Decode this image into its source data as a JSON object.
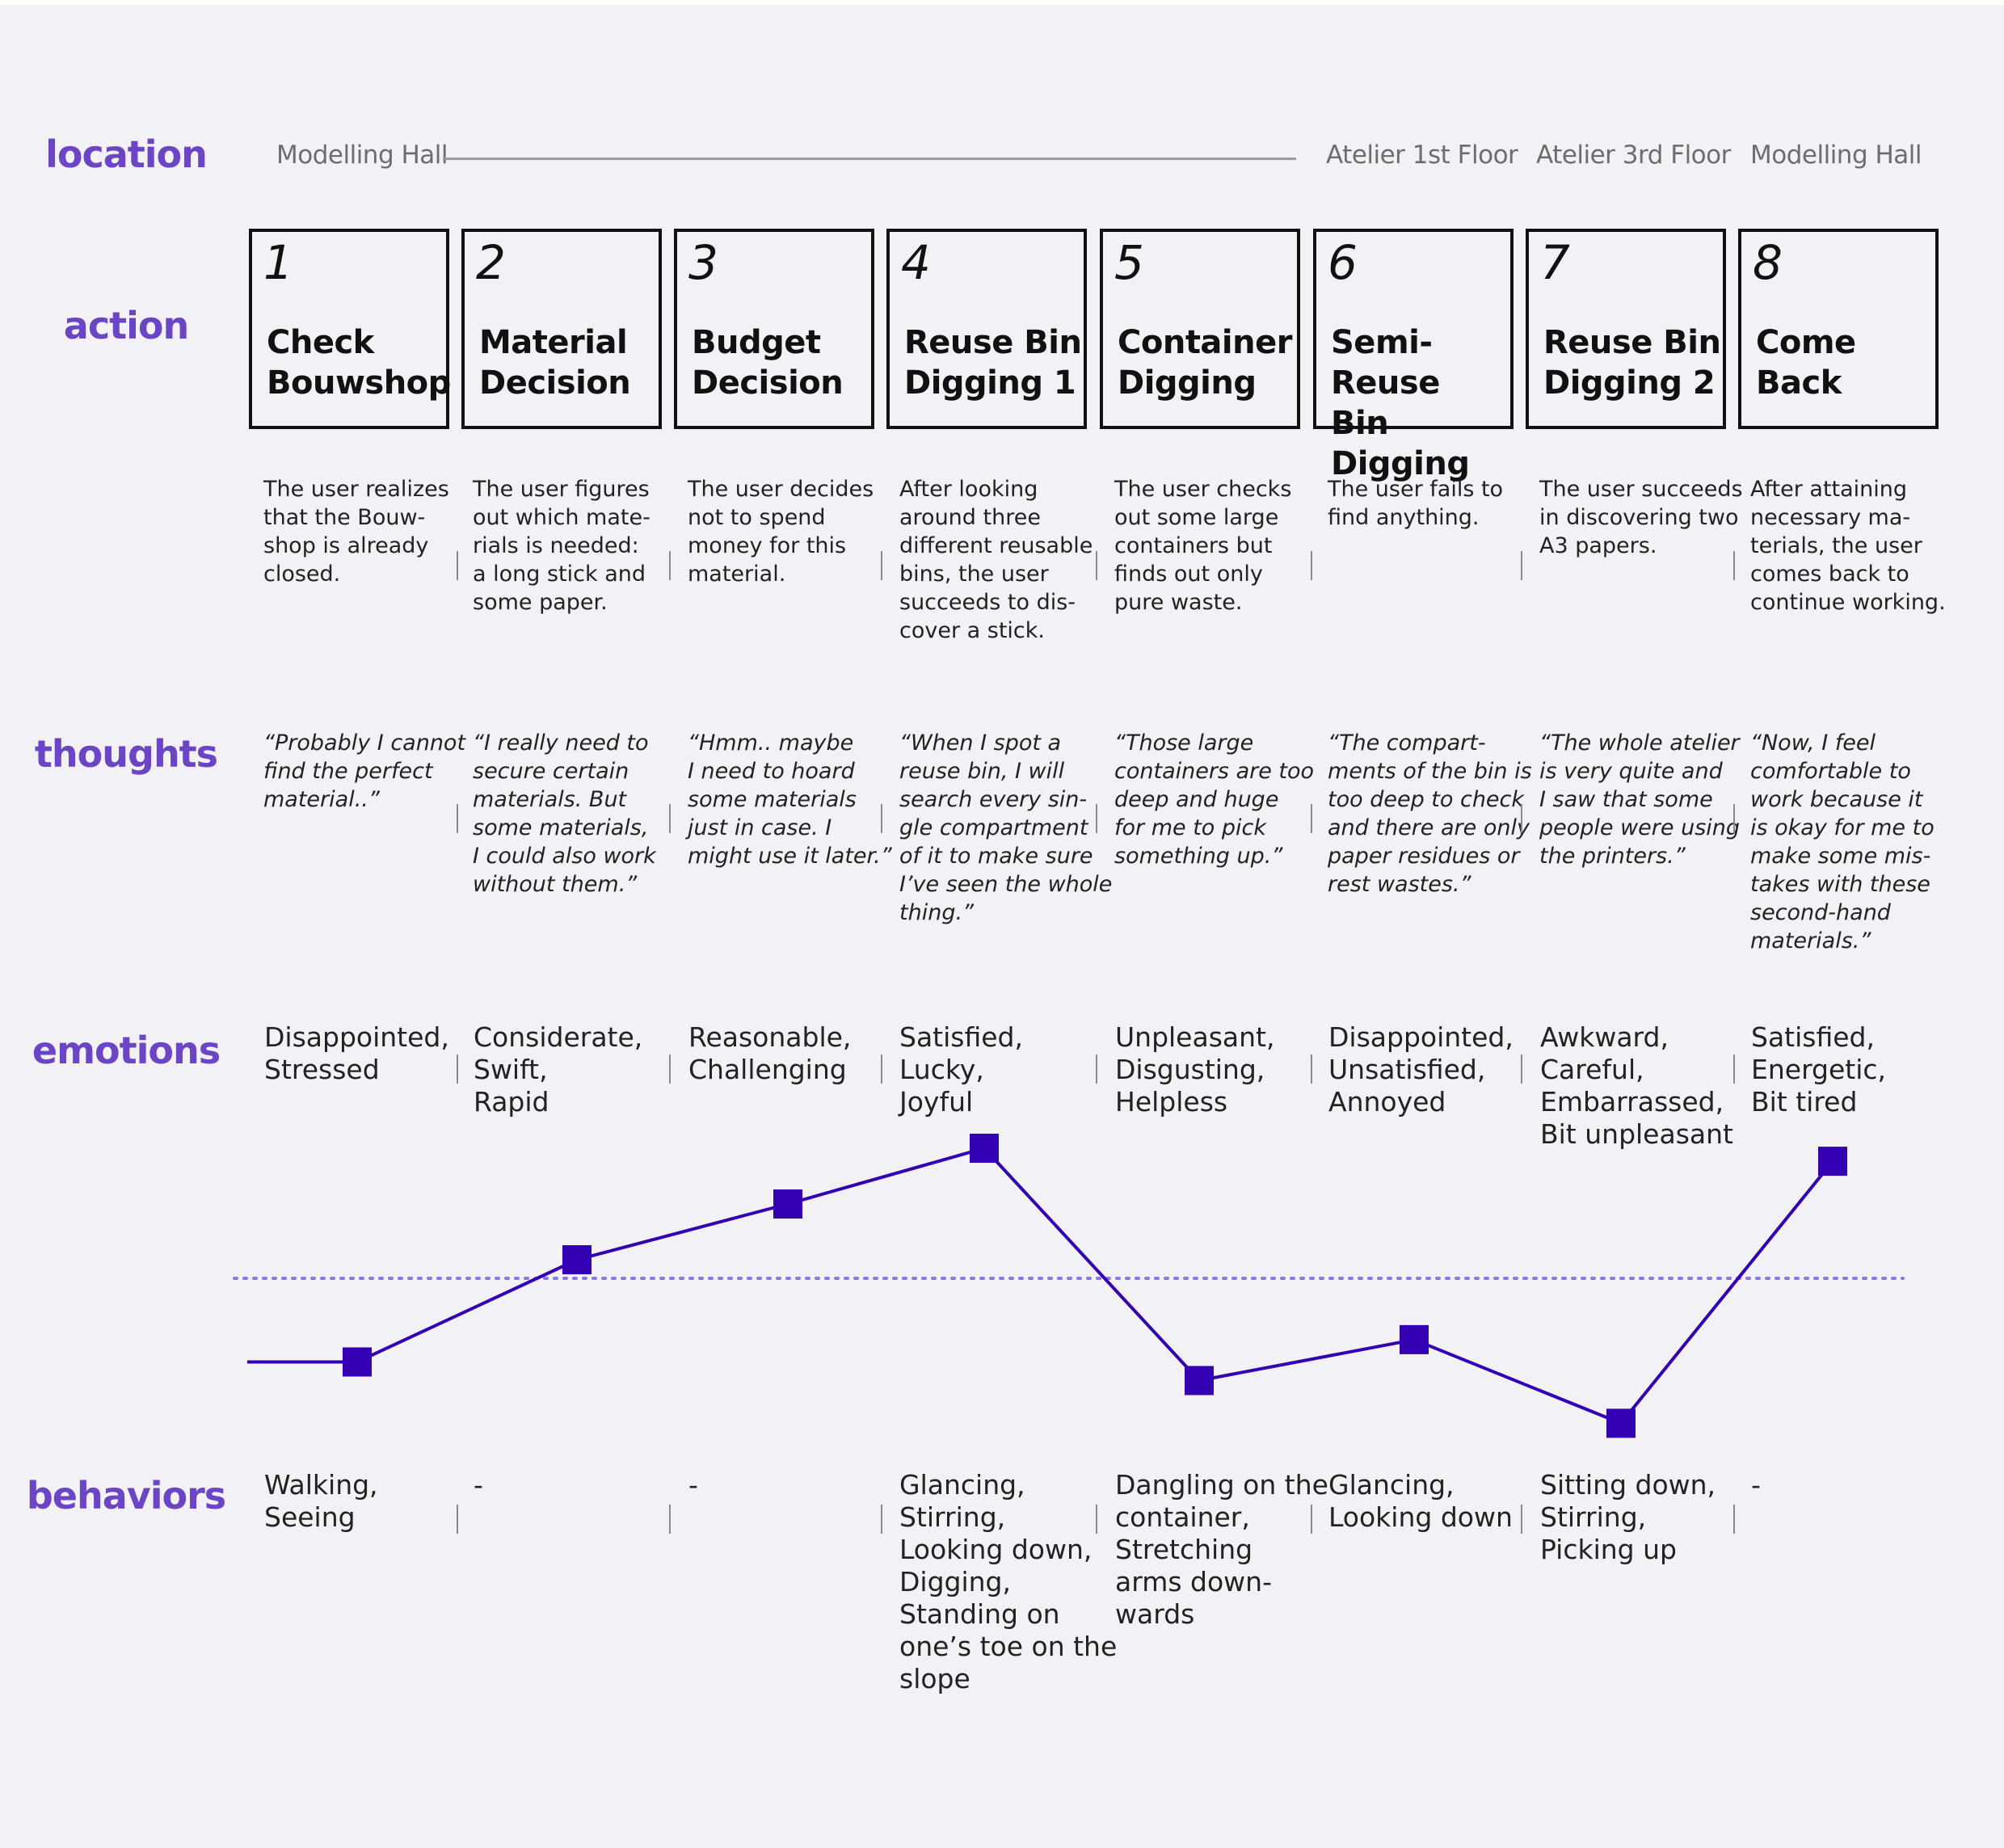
{
  "row_labels": {
    "location": "location",
    "action": "action",
    "thoughts": "thoughts",
    "emotions": "emotions",
    "behaviors": "behaviors"
  },
  "locations": [
    "Modelling Hall",
    "Atelier 1st Floor",
    "Atelier 3rd Floor",
    "Modelling Hall"
  ],
  "steps": [
    {
      "num": "1",
      "title": "Check\nBouwshop",
      "description": "The user realizes\nthat the Bouw-\nshop is already\nclosed.",
      "thought": "“Probably I cannot\nfind the perfect\nmaterial..”",
      "emotions": "Disappointed,\nStressed",
      "behaviors": "Walking,\nSeeing"
    },
    {
      "num": "2",
      "title": "Material\nDecision",
      "description": "The user figures\nout which mate-\nrials is needed:\na long stick and\nsome paper.",
      "thought": "“I really need to\nsecure certain\nmaterials. But\nsome materials,\nI could also work\nwithout them.”",
      "emotions": "Considerate,\nSwift,\nRapid",
      "behaviors": "-"
    },
    {
      "num": "3",
      "title": "Budget\nDecision",
      "description": "The user decides\nnot to spend\nmoney for this\nmaterial.",
      "thought": "“Hmm.. maybe\nI need to hoard\nsome materials\njust in case. I\nmight use it later.”",
      "emotions": "Reasonable,\nChallenging",
      "behaviors": "-"
    },
    {
      "num": "4",
      "title": "Reuse Bin\nDigging 1",
      "description": "After looking\naround three\ndifferent reusable\nbins, the user\nsucceeds to dis-\ncover a stick.",
      "thought": "“When I spot a\nreuse bin, I will\nsearch every sin-\ngle compartment\nof it to make sure\nI’ve seen the whole\nthing.”",
      "emotions": "Satisfied,\nLucky,\nJoyful",
      "behaviors": "Glancing,\nStirring,\nLooking down,\nDigging,\nStanding on\none’s toe on the\nslope"
    },
    {
      "num": "5",
      "title": "Container\nDigging",
      "description": "The user checks\nout some large\ncontainers but\nfinds out only\npure waste.",
      "thought": "“Those large\ncontainers are too\ndeep and huge\nfor me to pick\nsomething up.”",
      "emotions": "Unpleasant,\nDisgusting,\nHelpless",
      "behaviors": "Dangling on the\ncontainer,\nStretching\narms down-\nwards"
    },
    {
      "num": "6",
      "title": "Semi-Reuse\nBin Digging",
      "description": "The user fails to\nfind anything.",
      "thought": "“The compart-\nments of the bin is\ntoo deep to check\nand there are only\npaper residues or\nrest wastes.”",
      "emotions": "Disappointed,\nUnsatisfied,\nAnnoyed",
      "behaviors": "Glancing,\nLooking down"
    },
    {
      "num": "7",
      "title": "Reuse Bin\nDigging 2",
      "description": "The user succeeds\nin discovering two\nA3 papers.",
      "thought": "“The whole atelier\nis very quite and\nI saw that some\npeople were using\nthe printers.”",
      "emotions": "Awkward,\nCareful,\nEmbarrassed,\nBit unpleasant",
      "behaviors": "Sitting down,\nStirring,\nPicking up"
    },
    {
      "num": "8",
      "title": "Come\nBack",
      "description": "After attaining\nnecessary ma-\nterials, the user\ncomes back to\ncontinue working.",
      "thought": "“Now, I feel\ncomfortable to\nwork because it\nis okay for me to\nmake some mis-\ntakes with these\nsecond-hand\nmaterials.”",
      "emotions": "Satisfied,\nEnergetic,\nBit tired",
      "behaviors": "-"
    }
  ],
  "emotion_curve": {
    "levels": [
      -0.45,
      0.1,
      0.4,
      0.7,
      -0.55,
      -0.33,
      -0.78,
      0.63
    ],
    "baseline": 0,
    "line_color": "#3300b3",
    "baseline_color": "#8878e0"
  }
}
